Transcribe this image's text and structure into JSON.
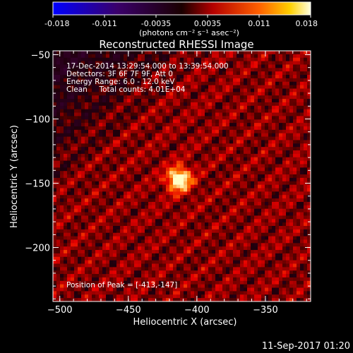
{
  "colorbar": {
    "ticks": [
      "-0.018",
      "-0.011",
      "-0.0035",
      "0.0035",
      "0.011",
      "0.018"
    ],
    "units": "(photons cm⁻² s⁻¹ asec⁻²)",
    "range": [
      -0.018,
      0.018
    ]
  },
  "chart_data": {
    "type": "heatmap",
    "title": "Reconstructed RHESSI Image",
    "xlabel": "Heliocentric X (arcsec)",
    "ylabel": "Heliocentric Y (arcsec)",
    "xlim": [
      -505,
      -317
    ],
    "ylim": [
      -242,
      -47
    ],
    "xticks": [
      -500,
      -450,
      -400,
      -350
    ],
    "yticks": [
      -50,
      -100,
      -150,
      -200
    ],
    "xtick_labels": [
      "−500",
      "−450",
      "−400",
      "−350"
    ],
    "ytick_labels": [
      "−50",
      "−100",
      "−150",
      "−200"
    ],
    "peak": {
      "x": -413,
      "y": -147
    },
    "colormap": "blue-purple-red-yellow-white",
    "annotations": [
      "17-Dec-2014 13:29:54.000 to 13:39:54.000",
      "Detectors: 3F 6F 7F 9F, Att 0",
      "Energy Range: 6.0 - 12.0 keV",
      "Clean     Total counts: 4.01E+04"
    ],
    "peak_label": "Position of Peak = [-413,-147]"
  },
  "footer": {
    "timestamp": "11-Sep-2017 01:20"
  }
}
